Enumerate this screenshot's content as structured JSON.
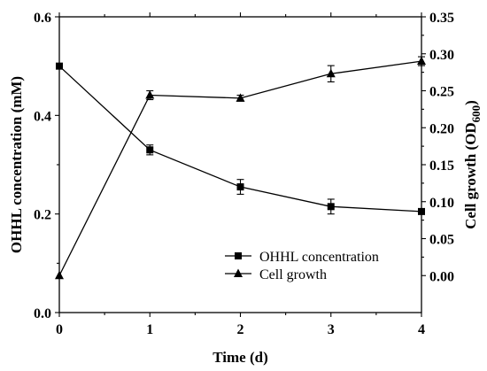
{
  "chart_data": {
    "type": "line",
    "xlabel": "Time (d)",
    "ylabel_left": "OHHL concentration (mM)",
    "ylabel_right": "Cell growth (OD600)",
    "x": [
      0,
      1,
      2,
      3,
      4
    ],
    "xlim": [
      0,
      4
    ],
    "ylim_left": [
      0,
      0.6
    ],
    "ylim_right": [
      -0.05,
      0.35
    ],
    "x_ticks": [
      "0",
      "1",
      "2",
      "3",
      "4"
    ],
    "y_ticks_left": [
      "0.0",
      "0.2",
      "0.4",
      "0.6"
    ],
    "y_ticks_right": [
      "0.00",
      "0.05",
      "0.10",
      "0.15",
      "0.20",
      "0.25",
      "0.30",
      "0.35"
    ],
    "grid": false,
    "legend_position": "lower-right",
    "series": [
      {
        "name": "OHHL concentration",
        "axis": "left",
        "marker": "square",
        "values": [
          0.5,
          0.33,
          0.255,
          0.215,
          0.205
        ],
        "errors": [
          0,
          0.01,
          0.015,
          0.015,
          0.005
        ]
      },
      {
        "name": "Cell growth",
        "axis": "right",
        "marker": "triangle",
        "values": [
          0.0,
          0.244,
          0.24,
          0.273,
          0.29
        ],
        "errors": [
          0,
          0.006,
          0.004,
          0.011,
          0.006
        ]
      }
    ]
  }
}
